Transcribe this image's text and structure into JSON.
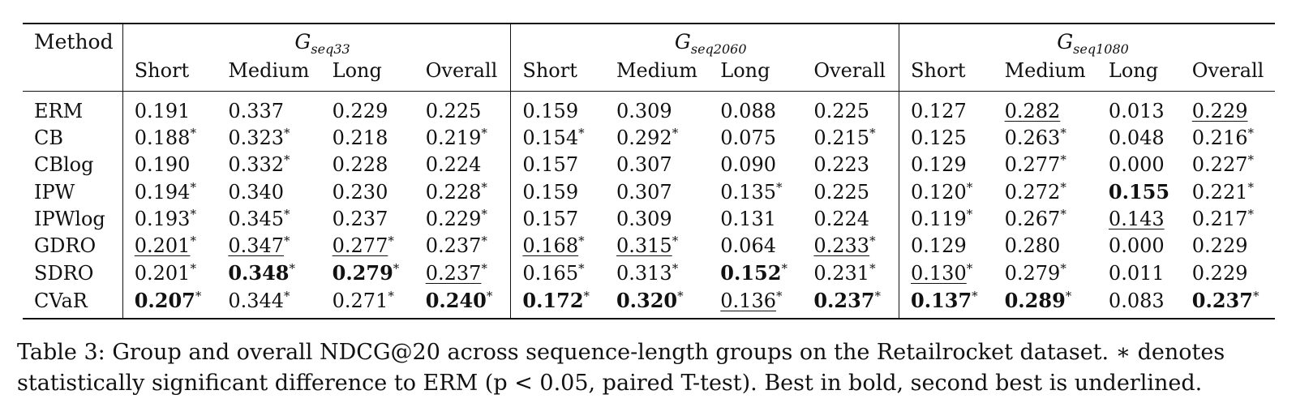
{
  "table": {
    "method_header": "Method",
    "groups": [
      {
        "symbol": "G",
        "subscript": "seq33"
      },
      {
        "symbol": "G",
        "subscript": "seq2060"
      },
      {
        "symbol": "G",
        "subscript": "seq1080"
      }
    ],
    "subcolumns": [
      "Short",
      "Medium",
      "Long",
      "Overall"
    ],
    "rows": [
      {
        "method": "ERM",
        "cells": [
          {
            "v": "0.191"
          },
          {
            "v": "0.337"
          },
          {
            "v": "0.229"
          },
          {
            "v": "0.225"
          },
          {
            "v": "0.159"
          },
          {
            "v": "0.309"
          },
          {
            "v": "0.088"
          },
          {
            "v": "0.225"
          },
          {
            "v": "0.127"
          },
          {
            "v": "0.282",
            "u": true
          },
          {
            "v": "0.013"
          },
          {
            "v": "0.229",
            "u": true
          }
        ]
      },
      {
        "method": "CB",
        "cells": [
          {
            "v": "0.188",
            "s": true
          },
          {
            "v": "0.323",
            "s": true
          },
          {
            "v": "0.218"
          },
          {
            "v": "0.219",
            "s": true
          },
          {
            "v": "0.154",
            "s": true
          },
          {
            "v": "0.292",
            "s": true
          },
          {
            "v": "0.075"
          },
          {
            "v": "0.215",
            "s": true
          },
          {
            "v": "0.125"
          },
          {
            "v": "0.263",
            "s": true
          },
          {
            "v": "0.048"
          },
          {
            "v": "0.216",
            "s": true
          }
        ]
      },
      {
        "method": "CBlog",
        "cells": [
          {
            "v": "0.190"
          },
          {
            "v": "0.332",
            "s": true
          },
          {
            "v": "0.228"
          },
          {
            "v": "0.224"
          },
          {
            "v": "0.157"
          },
          {
            "v": "0.307"
          },
          {
            "v": "0.090"
          },
          {
            "v": "0.223"
          },
          {
            "v": "0.129"
          },
          {
            "v": "0.277",
            "s": true
          },
          {
            "v": "0.000"
          },
          {
            "v": "0.227",
            "s": true
          }
        ]
      },
      {
        "method": "IPW",
        "cells": [
          {
            "v": "0.194",
            "s": true
          },
          {
            "v": "0.340"
          },
          {
            "v": "0.230"
          },
          {
            "v": "0.228",
            "s": true
          },
          {
            "v": "0.159"
          },
          {
            "v": "0.307"
          },
          {
            "v": "0.135",
            "s": true
          },
          {
            "v": "0.225"
          },
          {
            "v": "0.120",
            "s": true
          },
          {
            "v": "0.272",
            "s": true
          },
          {
            "v": "0.155",
            "b": true
          },
          {
            "v": "0.221",
            "s": true
          }
        ]
      },
      {
        "method": "IPWlog",
        "cells": [
          {
            "v": "0.193",
            "s": true
          },
          {
            "v": "0.345",
            "s": true
          },
          {
            "v": "0.237"
          },
          {
            "v": "0.229",
            "s": true
          },
          {
            "v": "0.157"
          },
          {
            "v": "0.309"
          },
          {
            "v": "0.131"
          },
          {
            "v": "0.224"
          },
          {
            "v": "0.119",
            "s": true
          },
          {
            "v": "0.267",
            "s": true
          },
          {
            "v": "0.143",
            "u": true
          },
          {
            "v": "0.217",
            "s": true
          }
        ]
      },
      {
        "method": "GDRO",
        "cells": [
          {
            "v": "0.201",
            "s": true,
            "u": true
          },
          {
            "v": "0.347",
            "s": true,
            "u": true
          },
          {
            "v": "0.277",
            "s": true,
            "u": true
          },
          {
            "v": "0.237",
            "s": true
          },
          {
            "v": "0.168",
            "s": true,
            "u": true
          },
          {
            "v": "0.315",
            "s": true,
            "u": true
          },
          {
            "v": "0.064"
          },
          {
            "v": "0.233",
            "s": true,
            "u": true
          },
          {
            "v": "0.129"
          },
          {
            "v": "0.280"
          },
          {
            "v": "0.000"
          },
          {
            "v": "0.229"
          }
        ]
      },
      {
        "method": "SDRO",
        "cells": [
          {
            "v": "0.201",
            "s": true
          },
          {
            "v": "0.348",
            "s": true,
            "b": true
          },
          {
            "v": "0.279",
            "s": true,
            "b": true
          },
          {
            "v": "0.237",
            "s": true,
            "u": true
          },
          {
            "v": "0.165",
            "s": true
          },
          {
            "v": "0.313",
            "s": true
          },
          {
            "v": "0.152",
            "s": true,
            "b": true
          },
          {
            "v": "0.231",
            "s": true
          },
          {
            "v": "0.130",
            "s": true,
            "u": true
          },
          {
            "v": "0.279",
            "s": true
          },
          {
            "v": "0.011"
          },
          {
            "v": "0.229"
          }
        ]
      },
      {
        "method": "CVaR",
        "cells": [
          {
            "v": "0.207",
            "s": true,
            "b": true
          },
          {
            "v": "0.344",
            "s": true
          },
          {
            "v": "0.271",
            "s": true
          },
          {
            "v": "0.240",
            "s": true,
            "b": true
          },
          {
            "v": "0.172",
            "s": true,
            "b": true
          },
          {
            "v": "0.320",
            "s": true,
            "b": true
          },
          {
            "v": "0.136",
            "s": true,
            "u": true
          },
          {
            "v": "0.237",
            "s": true,
            "b": true
          },
          {
            "v": "0.137",
            "s": true,
            "b": true
          },
          {
            "v": "0.289",
            "s": true,
            "b": true
          },
          {
            "v": "0.083"
          },
          {
            "v": "0.237",
            "s": true,
            "b": true
          }
        ]
      }
    ]
  },
  "caption": {
    "line1": "Table 3: Group and overall NDCG@20 across sequence-length groups on the Retailrocket dataset. ∗ denotes",
    "line2": "statistically significant difference to ERM (p < 0.05, paired T-test). Best in bold, second best is underlined."
  }
}
